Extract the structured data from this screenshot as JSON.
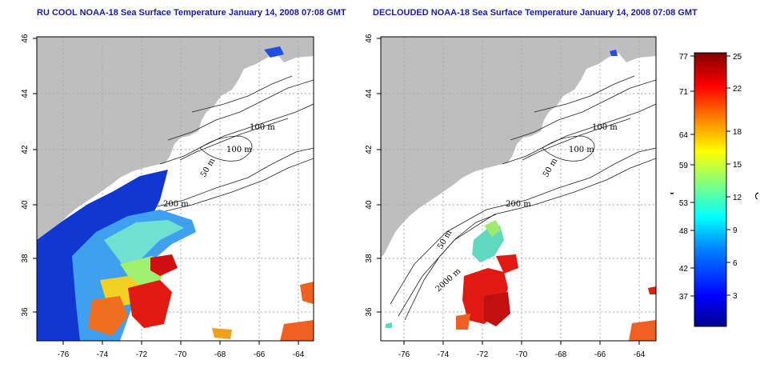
{
  "panels": [
    {
      "title": "RU COOL NOAA-18 Sea Surface Temperature January 14, 2008 07:08 GMT"
    },
    {
      "title": "DECLOUDED NOAA-18 Sea Surface Temperature January 14, 2008 07:08 GMT"
    }
  ],
  "axes": {
    "x_ticks": [
      "-76",
      "-74",
      "-72",
      "-70",
      "-68",
      "-66",
      "-64"
    ],
    "y_ticks": [
      "36",
      "38",
      "40",
      "42",
      "44",
      "46"
    ]
  },
  "contour_labels": {
    "c100a": "100 m",
    "c100b": "100 m",
    "c50": "50 m",
    "c200": "200 m",
    "c50b": "50 m",
    "c2000": "2000 m"
  },
  "colorbar": {
    "f_label": "°F",
    "c_label": "°C",
    "f_ticks": [
      "77",
      "71",
      "64",
      "59",
      "53",
      "48",
      "42",
      "37"
    ],
    "c_ticks": [
      "25",
      "22",
      "18",
      "15",
      "12",
      "9",
      "6",
      "3"
    ],
    "colors": [
      "#00008f",
      "#0000ff",
      "#0080ff",
      "#00ffff",
      "#80ff80",
      "#ffff00",
      "#ff8000",
      "#ff0000",
      "#800000"
    ]
  }
}
